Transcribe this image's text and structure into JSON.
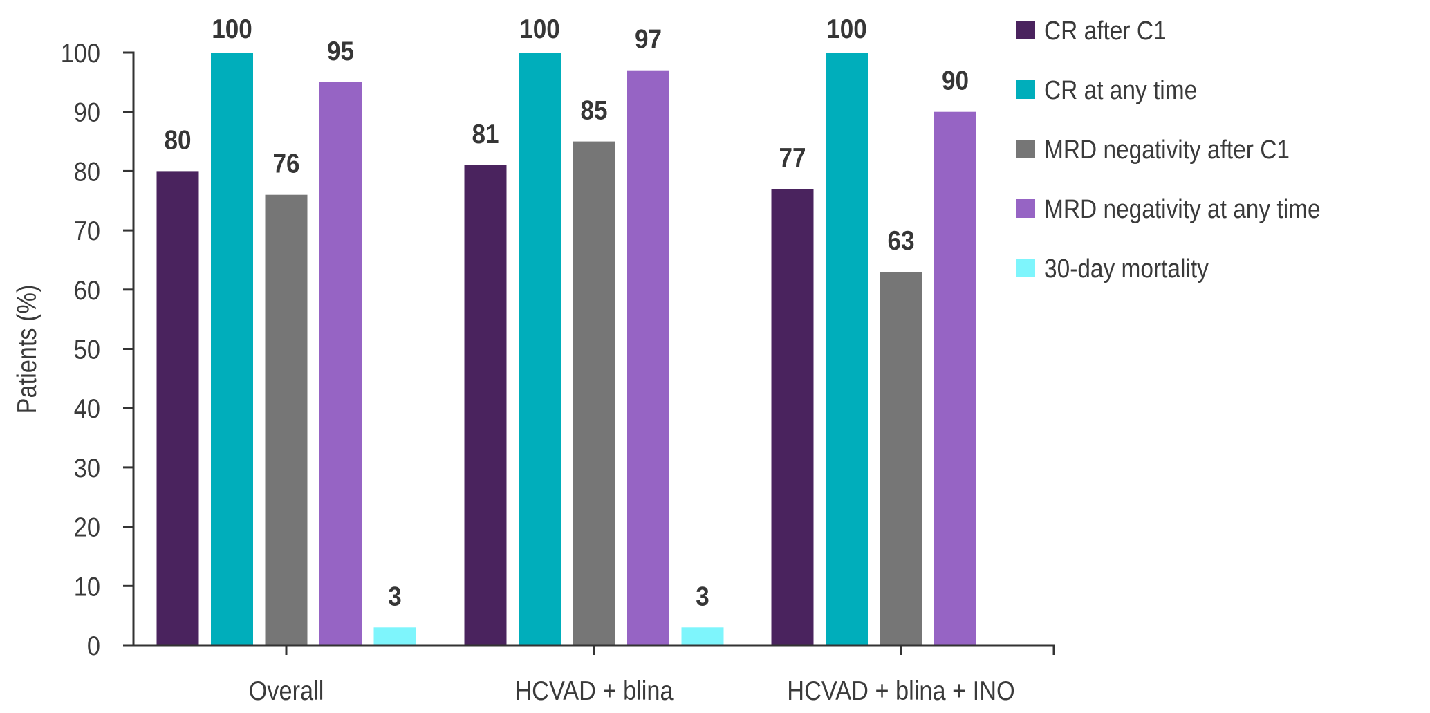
{
  "chart_data": {
    "type": "bar",
    "title": "",
    "xlabel": "",
    "ylabel": "Patients (%)",
    "ylim": [
      0,
      100
    ],
    "yticks": [
      0,
      10,
      20,
      30,
      40,
      50,
      60,
      70,
      80,
      90,
      100
    ],
    "grid": false,
    "legend_position": "right",
    "categories": [
      "Overall",
      "HCVAD + blina",
      "HCVAD + blina + INO"
    ],
    "series": [
      {
        "name": "CR after C1",
        "color": "#4a235e",
        "values": [
          80,
          81,
          77
        ]
      },
      {
        "name": "CR at any time",
        "color": "#00aebb",
        "values": [
          100,
          100,
          100
        ]
      },
      {
        "name": "MRD negativity after C1",
        "color": "#767676",
        "values": [
          76,
          85,
          63
        ]
      },
      {
        "name": "MRD negativity at any time",
        "color": "#9664c4",
        "values": [
          95,
          97,
          90
        ]
      },
      {
        "name": "30-day mortality",
        "color": "#7ef5fc",
        "values": [
          3,
          3,
          null
        ]
      }
    ]
  }
}
